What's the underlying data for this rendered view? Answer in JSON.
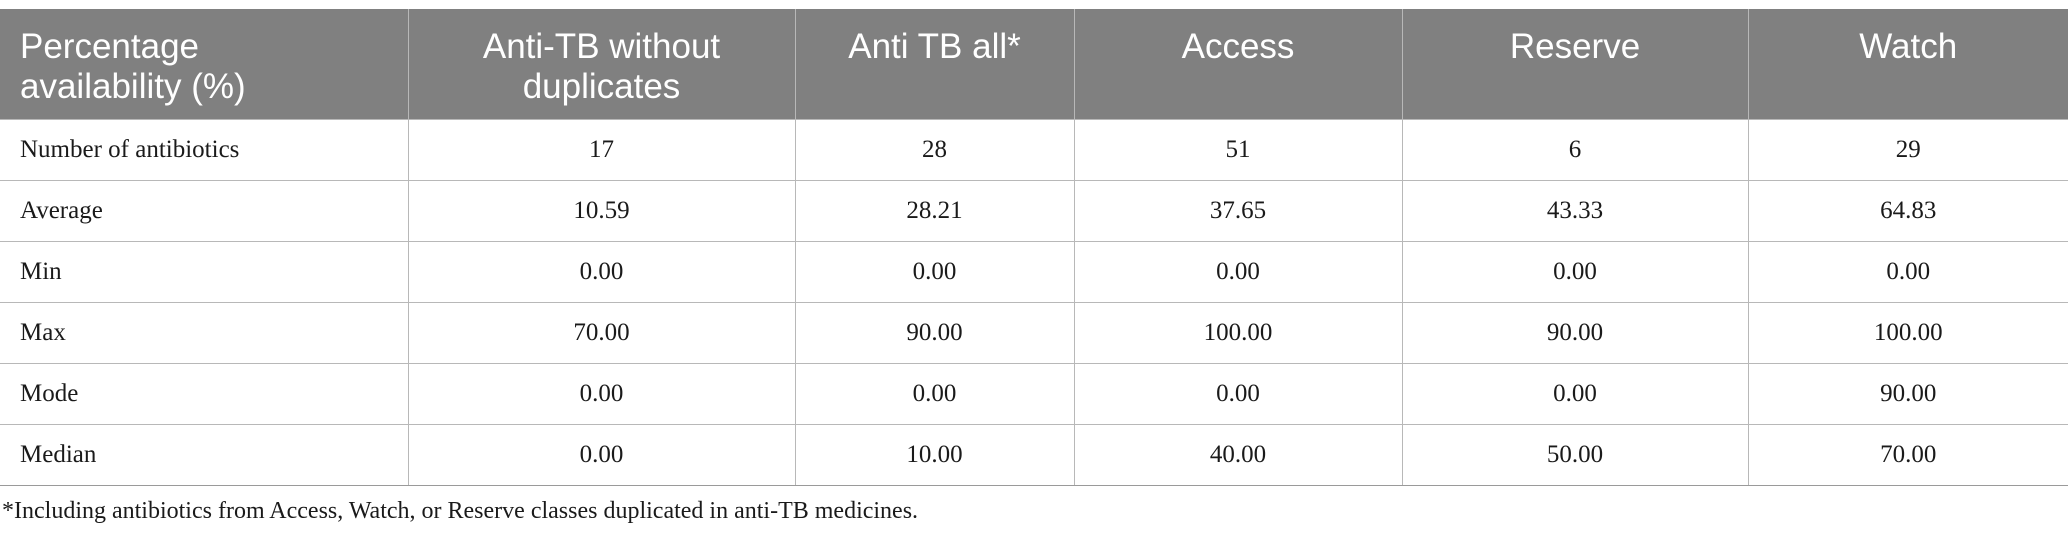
{
  "table": {
    "headers": [
      [
        "Percentage",
        "availability (%)"
      ],
      [
        "Anti-TB without",
        "duplicates"
      ],
      [
        "Anti TB all*"
      ],
      [
        "Access"
      ],
      [
        "Reserve"
      ],
      [
        "Watch"
      ]
    ],
    "rows": [
      {
        "label": "Number of antibiotics",
        "cells": [
          "17",
          "28",
          "51",
          "6",
          "29"
        ]
      },
      {
        "label": "Average",
        "cells": [
          "10.59",
          "28.21",
          "37.65",
          "43.33",
          "64.83"
        ]
      },
      {
        "label": "Min",
        "cells": [
          "0.00",
          "0.00",
          "0.00",
          "0.00",
          "0.00"
        ]
      },
      {
        "label": "Max",
        "cells": [
          "70.00",
          "90.00",
          "100.00",
          "90.00",
          "100.00"
        ]
      },
      {
        "label": "Mode",
        "cells": [
          "0.00",
          "0.00",
          "0.00",
          "0.00",
          "90.00"
        ]
      },
      {
        "label": "Median",
        "cells": [
          "0.00",
          "10.00",
          "40.00",
          "50.00",
          "70.00"
        ]
      }
    ]
  },
  "footnote": "*Including antibiotics from Access, Watch, or Reserve classes duplicated in anti-TB medicines.",
  "colors": {
    "header_bg": "#808080",
    "header_text": "#ffffff",
    "rule": "#b8b8b8"
  }
}
